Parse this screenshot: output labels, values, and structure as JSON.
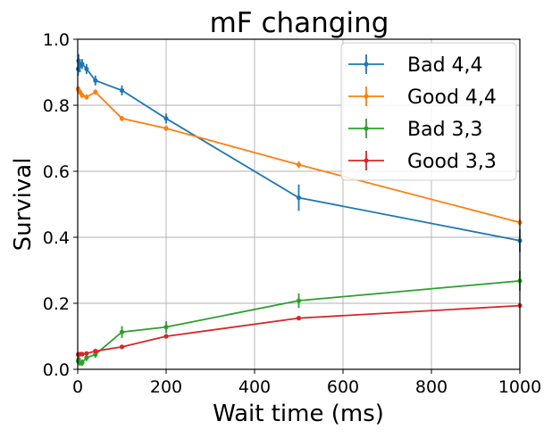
{
  "chart_data": {
    "type": "line",
    "title": "mF changing",
    "xlabel": "Wait time (ms)",
    "ylabel": "Survival",
    "xlim": [
      0,
      1000
    ],
    "ylim": [
      0,
      1.0
    ],
    "xticks": [
      0,
      200,
      400,
      600,
      800,
      1000
    ],
    "yticks": [
      0.0,
      0.2,
      0.4,
      0.6,
      0.8,
      1.0
    ],
    "xtick_labels": [
      "0",
      "200",
      "400",
      "600",
      "800",
      "1000"
    ],
    "ytick_labels": [
      "0.0",
      "0.2",
      "0.4",
      "0.6",
      "0.8",
      "1.0"
    ],
    "grid": true,
    "legend_position": "top-right",
    "series": [
      {
        "name": "Bad 4,4",
        "color": "#1f77b4",
        "x": [
          1,
          2,
          5,
          10,
          20,
          40,
          100,
          200,
          500,
          1000
        ],
        "y": [
          0.91,
          0.935,
          0.92,
          0.925,
          0.91,
          0.875,
          0.845,
          0.76,
          0.52,
          0.39
        ],
        "err": [
          0.02,
          0.02,
          0.02,
          0.015,
          0.015,
          0.015,
          0.015,
          0.015,
          0.04,
          0.035
        ]
      },
      {
        "name": "Good 4,4",
        "color": "#ff7f0e",
        "x": [
          1,
          2,
          5,
          10,
          20,
          40,
          100,
          200,
          500,
          1000
        ],
        "y": [
          0.85,
          0.845,
          0.84,
          0.83,
          0.825,
          0.84,
          0.76,
          0.73,
          0.62,
          0.445
        ],
        "err": [
          0.008,
          0.008,
          0.008,
          0.008,
          0.008,
          0.008,
          0.008,
          0.008,
          0.01,
          0.01
        ]
      },
      {
        "name": "Bad 3,3",
        "color": "#2ca02c",
        "x": [
          1,
          2,
          5,
          10,
          20,
          40,
          100,
          200,
          500,
          1000
        ],
        "y": [
          0.025,
          0.03,
          0.02,
          0.02,
          0.035,
          0.045,
          0.113,
          0.128,
          0.208,
          0.268
        ],
        "err": [
          0.01,
          0.01,
          0.01,
          0.01,
          0.01,
          0.01,
          0.018,
          0.018,
          0.022,
          0.03
        ]
      },
      {
        "name": "Good 3,3",
        "color": "#d62728",
        "x": [
          1,
          2,
          5,
          10,
          20,
          40,
          100,
          200,
          500,
          1000
        ],
        "y": [
          0.045,
          0.045,
          0.046,
          0.046,
          0.048,
          0.055,
          0.068,
          0.1,
          0.155,
          0.193
        ],
        "err": [
          0.005,
          0.005,
          0.005,
          0.005,
          0.005,
          0.005,
          0.005,
          0.005,
          0.006,
          0.006
        ]
      }
    ]
  }
}
